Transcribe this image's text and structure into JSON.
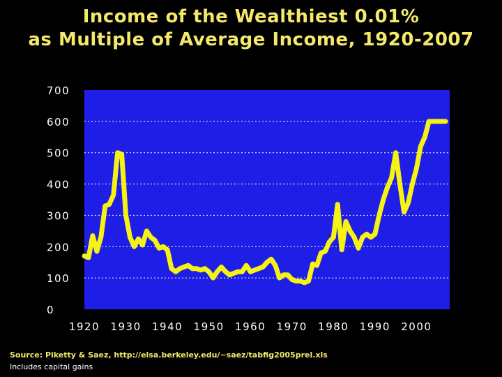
{
  "chart_data": {
    "type": "line",
    "title": "Income of the Wealthiest 0.01%",
    "subtitle": "as Multiple of Average Income, 1920-2007",
    "xlabel": "",
    "ylabel": "",
    "xlim": [
      1920,
      2008
    ],
    "ylim": [
      0,
      700
    ],
    "y_ticks": [
      "0",
      "100",
      "200",
      "300",
      "400",
      "500",
      "600",
      "700"
    ],
    "x_ticks": [
      "1920",
      "1930",
      "1940",
      "1950",
      "1960",
      "1970",
      "1980",
      "1990",
      "2000"
    ],
    "grid": "dashed horizontal",
    "colors": {
      "background": "#000000",
      "plot": "#1e1ee6",
      "line": "#f6f213",
      "title": "#f4e96a",
      "grid": "#ffffff"
    },
    "series": [
      {
        "x": [
          1920,
          1921,
          1922,
          1923,
          1924,
          1925,
          1926,
          1927,
          1928,
          1929,
          1930,
          1931,
          1932,
          1933,
          1934,
          1935,
          1936,
          1937,
          1938,
          1939,
          1940,
          1941,
          1942,
          1943,
          1944,
          1945,
          1946,
          1947,
          1948,
          1949,
          1950,
          1951,
          1952,
          1953,
          1954,
          1955,
          1956,
          1957,
          1958,
          1959,
          1960,
          1961,
          1962,
          1963,
          1964,
          1965,
          1966,
          1967,
          1968,
          1969,
          1970,
          1971,
          1972,
          1973,
          1974,
          1975,
          1976,
          1977,
          1978,
          1979,
          1980,
          1981,
          1982,
          1983,
          1984,
          1985,
          1986,
          1987,
          1988,
          1989,
          1990,
          1991,
          1992,
          1993,
          1994,
          1995,
          1996,
          1997,
          1998,
          1999,
          2000,
          2001,
          2002,
          2003,
          2004,
          2005,
          2006,
          2007
        ],
        "values": [
          170,
          165,
          235,
          185,
          230,
          330,
          335,
          365,
          500,
          495,
          300,
          230,
          200,
          225,
          205,
          250,
          230,
          220,
          195,
          200,
          190,
          130,
          120,
          130,
          135,
          140,
          130,
          130,
          125,
          130,
          120,
          100,
          120,
          135,
          120,
          110,
          115,
          120,
          120,
          140,
          120,
          125,
          130,
          135,
          150,
          160,
          140,
          100,
          110,
          110,
          95,
          90,
          90,
          85,
          90,
          145,
          140,
          180,
          185,
          215,
          230,
          335,
          190,
          280,
          250,
          230,
          195,
          230,
          240,
          230,
          240,
          300,
          350,
          390,
          420,
          500,
          400,
          310,
          340,
          400,
          450,
          520,
          550,
          600,
          600,
          600,
          600,
          600
        ]
      }
    ]
  },
  "footer": {
    "source": "Source: Piketty & Saez, http://elsa.berkeley.edu/~saez/tabfig2005prel.xls",
    "note": "Includes capital gains"
  }
}
